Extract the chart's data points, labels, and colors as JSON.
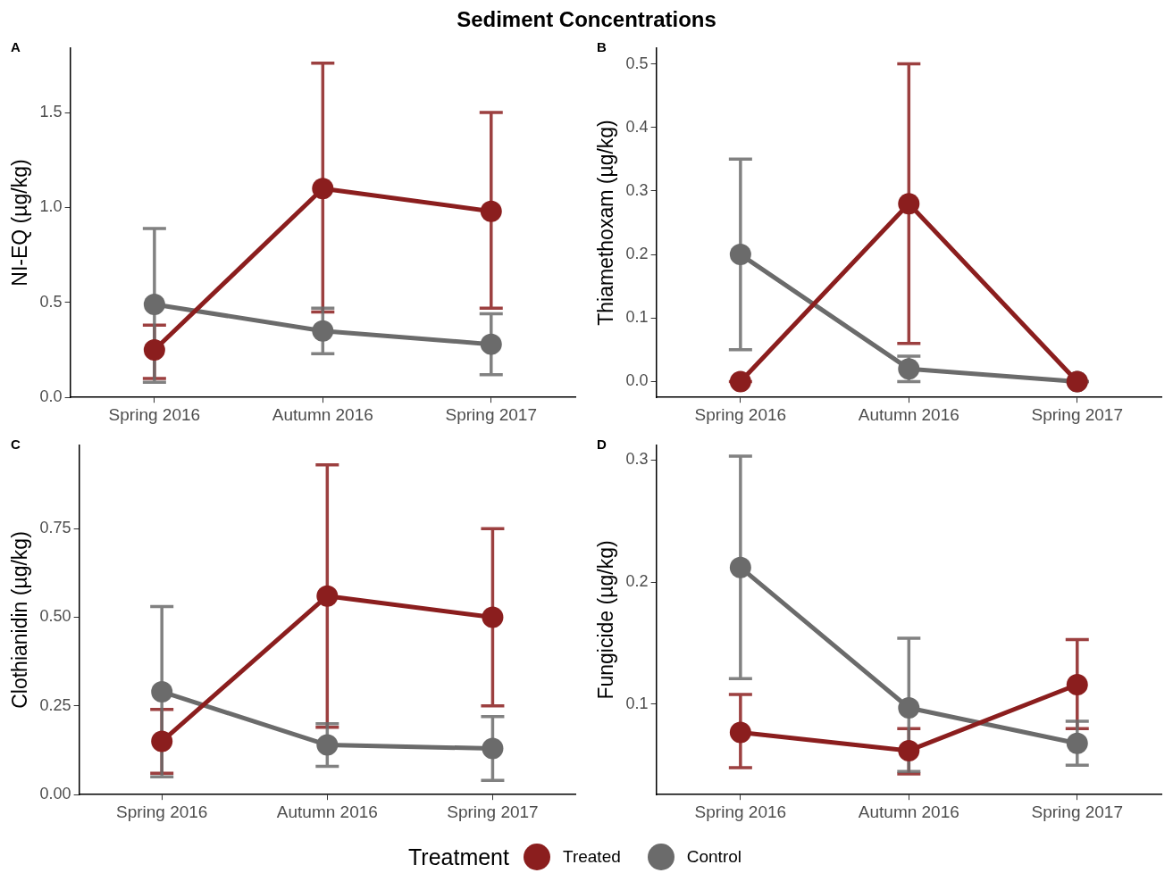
{
  "chart_data": [
    {
      "type": "line",
      "title": "Sediment Concentrations",
      "annotations": [
        "A"
      ],
      "ylabel": "NI-EQ (µg/kg)",
      "categories": [
        "Spring 2016",
        "Autumn 2016",
        "Spring 2017"
      ],
      "ylim": [
        0,
        1.84
      ],
      "yticks": [
        {
          "value": 0,
          "label": "0.0"
        },
        0.5,
        {
          "value": 1,
          "label": "1.0"
        },
        1.5
      ],
      "legend": "bottom",
      "legend_title": "Treatment",
      "marker": "circle",
      "line_style": "solid",
      "series": [
        {
          "name": "Treated",
          "color": "#8b1e1e",
          "values": [
            0.25,
            1.1,
            0.98
          ],
          "errors": [
            [
              0.1,
              0.38
            ],
            [
              0.45,
              1.76
            ],
            [
              0.47,
              1.5
            ]
          ]
        },
        {
          "name": "Control",
          "color": "#6b6b6b",
          "values": [
            0.49,
            0.35,
            0.28
          ],
          "errors": [
            [
              0.08,
              0.89
            ],
            [
              0.23,
              0.47
            ],
            [
              0.12,
              0.44
            ]
          ]
        }
      ]
    },
    {
      "type": "line",
      "annotations": [
        "B"
      ],
      "ylabel": "Thiamethoxam (µg/kg)",
      "categories": [
        "Spring 2016",
        "Autumn 2016",
        "Spring 2017"
      ],
      "ylim": [
        -0.025,
        0.525
      ],
      "yticks": [
        {
          "value": 0,
          "label": "0.0"
        },
        0.1,
        0.2,
        0.3,
        0.4,
        0.5
      ],
      "marker": "circle",
      "line_style": "solid",
      "series": [
        {
          "color": "#8b1e1e",
          "values": [
            0,
            0.28,
            0
          ],
          "errors": [
            [
              0,
              0
            ],
            [
              0.06,
              0.5
            ],
            [
              0,
              0
            ]
          ]
        },
        {
          "color": "#6b6b6b",
          "values": [
            0.2,
            0.02,
            0
          ],
          "errors": [
            [
              0.05,
              0.35
            ],
            [
              0,
              0.04
            ],
            [
              0,
              0
            ]
          ]
        }
      ]
    },
    {
      "type": "line",
      "annotations": [
        "C"
      ],
      "ylabel": "Clothianidin (µg/kg)",
      "categories": [
        "Spring 2016",
        "Autumn 2016",
        "Spring 2017"
      ],
      "ylim": [
        0,
        0.985
      ],
      "yticks": [
        {
          "value": 0,
          "label": "0.00"
        },
        0.25,
        {
          "value": 0.5,
          "label": "0.50"
        },
        0.75
      ],
      "marker": "circle",
      "line_style": "solid",
      "series": [
        {
          "color": "#8b1e1e",
          "values": [
            0.15,
            0.56,
            0.5
          ],
          "errors": [
            [
              0.06,
              0.24
            ],
            [
              0.19,
              0.93
            ],
            [
              0.25,
              0.75
            ]
          ]
        },
        {
          "color": "#6b6b6b",
          "values": [
            0.29,
            0.14,
            0.13
          ],
          "errors": [
            [
              0.05,
              0.53
            ],
            [
              0.08,
              0.2
            ],
            [
              0.04,
              0.22
            ]
          ]
        }
      ]
    },
    {
      "type": "line",
      "annotations": [
        "D"
      ],
      "ylabel": "Fungicide (µg/kg)",
      "categories": [
        "Spring 2016",
        "Autumn 2016",
        "Spring 2017"
      ],
      "ylim": [
        0.026,
        0.312
      ],
      "yticks": [
        0.1,
        0.2,
        0.3
      ],
      "marker": "circle",
      "line_style": "solid",
      "series": [
        {
          "color": "#8b1e1e",
          "values": [
            0.077,
            0.062,
            0.116
          ],
          "errors": [
            [
              0.048,
              0.108
            ],
            [
              0.043,
              0.08
            ],
            [
              0.08,
              0.153
            ]
          ]
        },
        {
          "color": "#6b6b6b",
          "values": [
            0.212,
            0.097,
            0.068
          ],
          "errors": [
            [
              0.121,
              0.303
            ],
            [
              0.045,
              0.154
            ],
            [
              0.05,
              0.086
            ]
          ]
        }
      ]
    }
  ]
}
